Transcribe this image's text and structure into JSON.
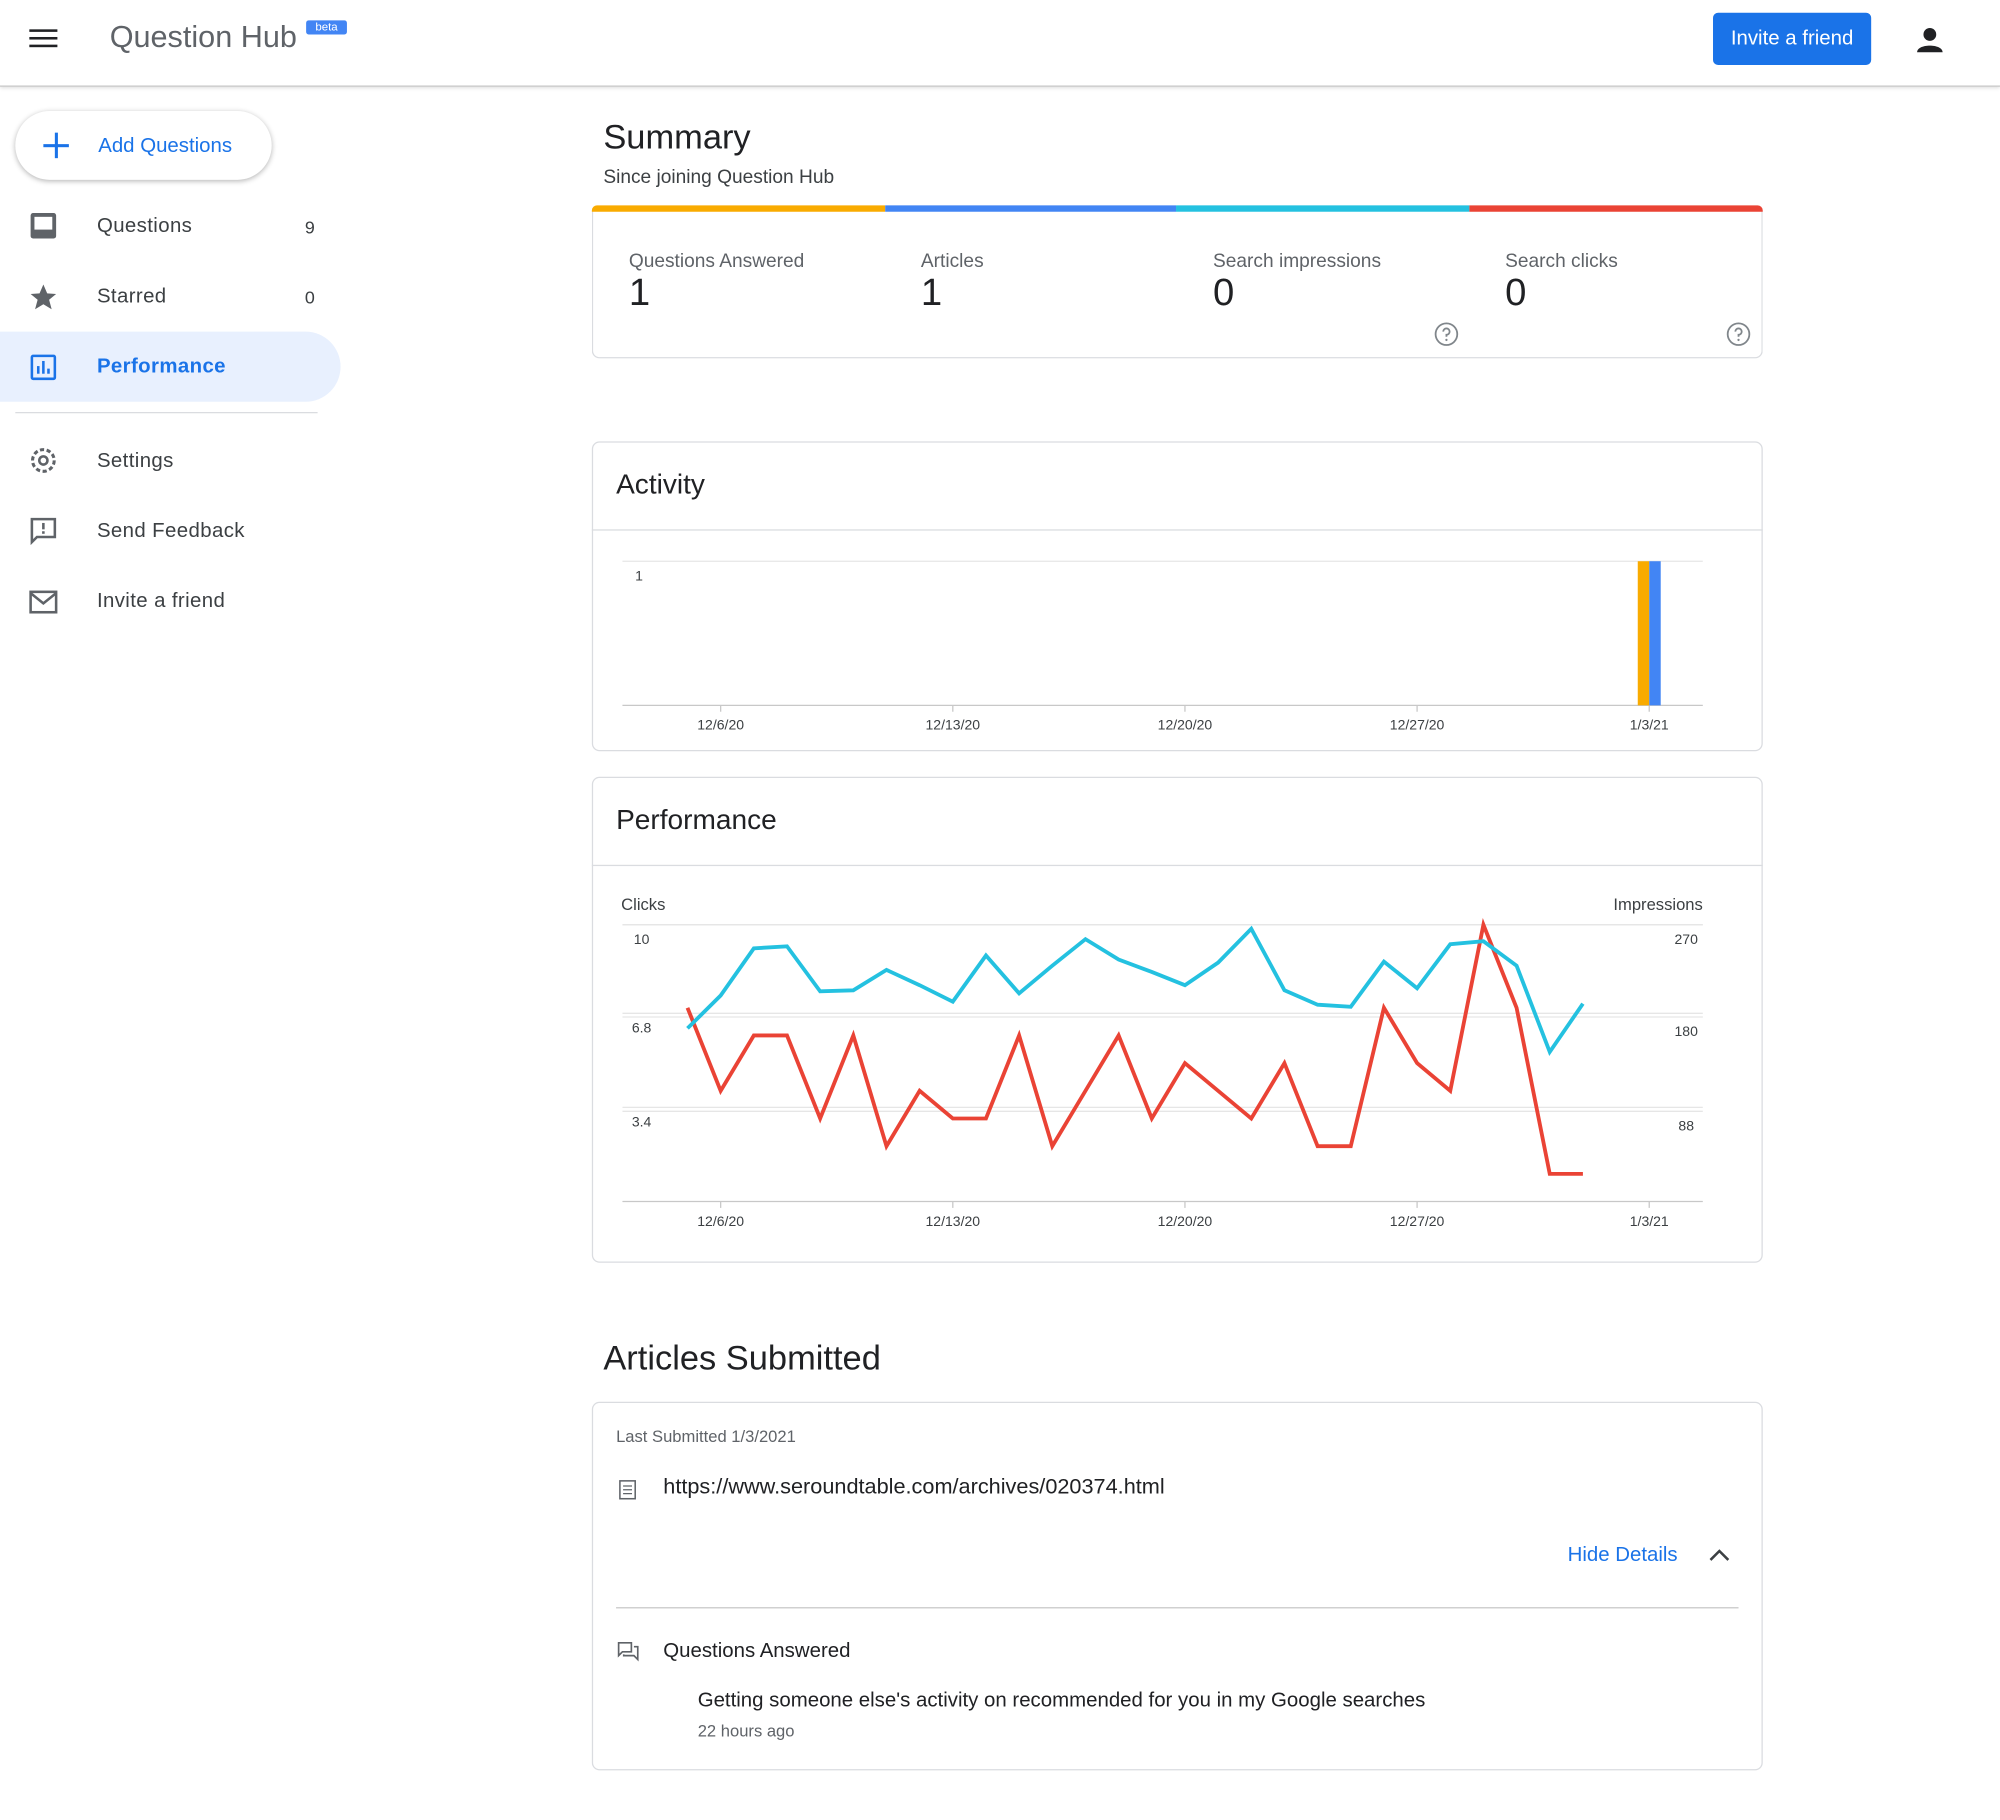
{
  "header": {
    "title": "Question Hub",
    "badge": "beta",
    "button": "Invite a friend"
  },
  "sidebar": {
    "add_button": "Add Questions",
    "items": [
      {
        "label": "Questions",
        "count": 9
      },
      {
        "label": "Starred",
        "count": 0
      },
      {
        "label": "Performance"
      },
      {
        "label": "Settings"
      },
      {
        "label": "Send Feedback"
      },
      {
        "label": "Invite a friend"
      }
    ]
  },
  "summary": {
    "title": "Summary",
    "subtitle": "Since joining Question Hub",
    "stats": [
      {
        "label": "Questions Answered",
        "value": 1
      },
      {
        "label": "Articles",
        "value": 1
      },
      {
        "label": "Search impressions",
        "value": 0
      },
      {
        "label": "Search clicks",
        "value": 0
      }
    ]
  },
  "chart_data": [
    {
      "type": "bar",
      "title": "Activity",
      "x": [
        "1/3/21"
      ],
      "series": [
        {
          "color": "#f9ab00",
          "values": [
            1
          ]
        },
        {
          "color": "#4285f4",
          "values": [
            1
          ]
        }
      ],
      "xlim": [
        "12/3/20",
        "1/5/21"
      ],
      "xticks": [
        "12/6/20",
        "12/13/20",
        "12/20/20",
        "12/27/20",
        "1/3/21"
      ],
      "ylim": [
        0,
        1
      ],
      "yticks": [
        1
      ],
      "grid": true
    },
    {
      "type": "line",
      "title": "Performance",
      "y_label": "Clicks",
      "y2_label": "Impressions",
      "x": [
        "12/5/20",
        "12/6/20",
        "12/7/20",
        "12/8/20",
        "12/9/20",
        "12/10/20",
        "12/11/20",
        "12/12/20",
        "12/13/20",
        "12/14/20",
        "12/15/20",
        "12/16/20",
        "12/17/20",
        "12/18/20",
        "12/19/20",
        "12/20/20",
        "12/21/20",
        "12/22/20",
        "12/23/20",
        "12/24/20",
        "12/25/20",
        "12/26/20",
        "12/27/20",
        "12/28/20",
        "12/29/20",
        "12/30/20",
        "12/31/20",
        "1/1/21"
      ],
      "series": [
        {
          "color": "#ea4335",
          "values": [
            7,
            4,
            6,
            6,
            3,
            6,
            2,
            4,
            3,
            3,
            6,
            2,
            4,
            6,
            3,
            5,
            4,
            3,
            5,
            2,
            2,
            7,
            5,
            4,
            10,
            7,
            1,
            1
          ]
        },
        {
          "color": "#24c1e0",
          "axis": "y2",
          "values": [
            169,
            201,
            247,
            249,
            205,
            206,
            226,
            211,
            195,
            240,
            203,
            230,
            256,
            236,
            224,
            211,
            233,
            266,
            206,
            192,
            190,
            234,
            208,
            251,
            254,
            230,
            146,
            193
          ]
        }
      ],
      "xlim": [
        "12/3/20",
        "1/5/21"
      ],
      "xticks": [
        "12/6/20",
        "12/13/20",
        "12/20/20",
        "12/27/20",
        "1/3/21"
      ],
      "ylim": [
        0,
        10
      ],
      "yticks": [
        10,
        6.8,
        3.4
      ],
      "y2lim": [
        0,
        270
      ],
      "y2ticks": [
        270,
        180,
        88
      ],
      "grid": true
    }
  ],
  "articles": {
    "title": "Articles Submitted",
    "last_submitted": "Last Submitted 1/3/2021",
    "url": "https://www.seroundtable.com/archives/020374.html",
    "toggle": "Hide Details",
    "section": "Questions Answered",
    "questions": [
      {
        "text": "Getting someone else's activity on recommended for you in my Google searches",
        "time": "22 hours ago"
      }
    ]
  }
}
